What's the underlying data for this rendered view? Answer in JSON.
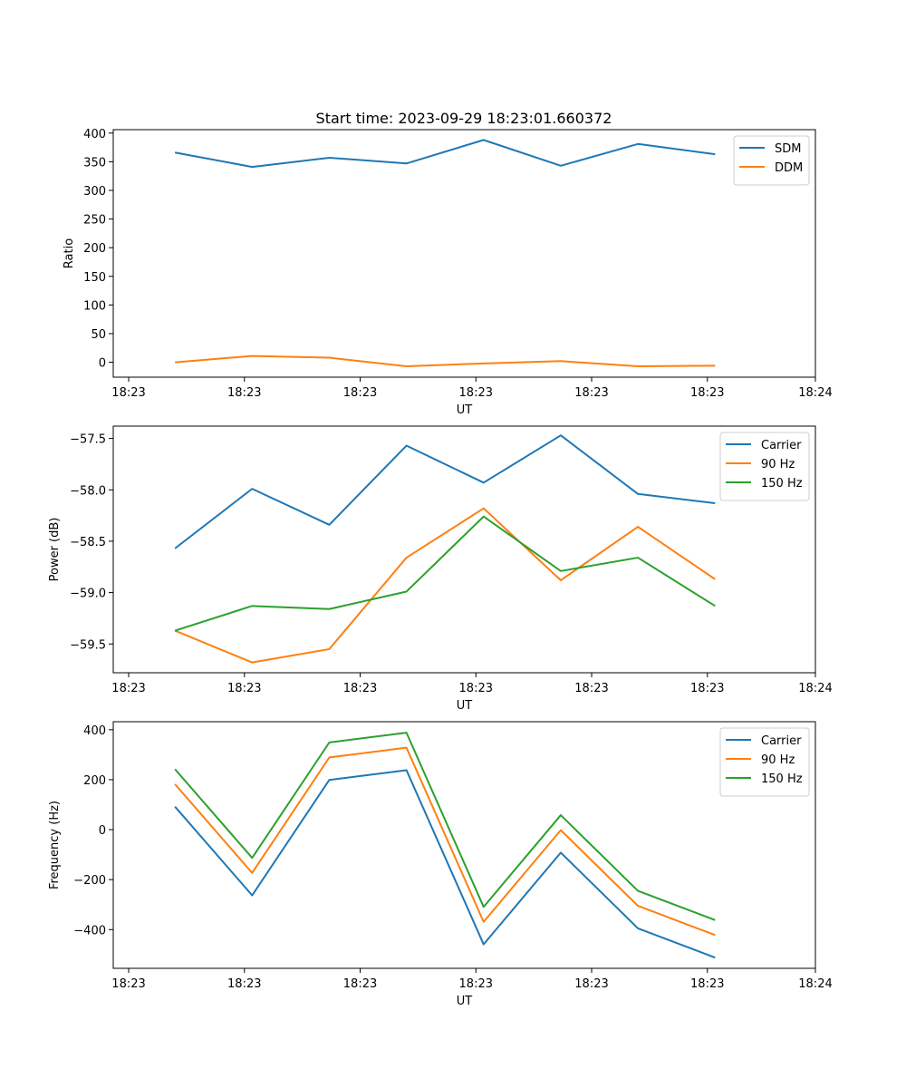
{
  "title": "Start time: 2023-09-29 18:23:01.660372",
  "chart_data": [
    {
      "type": "line",
      "xlabel": "UT",
      "ylabel": "Ratio",
      "x": [
        1,
        2,
        3,
        4,
        5,
        6,
        7,
        8
      ],
      "xlim": [
        0.2,
        9.3
      ],
      "xticks": [
        0.4,
        1.9,
        3.4,
        4.9,
        6.4,
        7.9,
        9.3
      ],
      "xtick_labels": [
        "18:23",
        "18:23",
        "18:23",
        "18:23",
        "18:23",
        "18:23",
        "18:24"
      ],
      "ylim": [
        -26,
        406
      ],
      "yticks": [
        0,
        50,
        100,
        150,
        200,
        250,
        300,
        350,
        400
      ],
      "ytick_labels": [
        "0",
        "50",
        "100",
        "150",
        "200",
        "250",
        "300",
        "350",
        "400"
      ],
      "legend_position": "top-right",
      "series": [
        {
          "name": "SDM",
          "color": "#1f77b4",
          "values": [
            366,
            341,
            357,
            347,
            388,
            343,
            381,
            363
          ]
        },
        {
          "name": "DDM",
          "color": "#ff7f0e",
          "values": [
            0,
            11,
            8,
            -7,
            -2,
            2,
            -7,
            -6
          ]
        }
      ]
    },
    {
      "type": "line",
      "xlabel": "UT",
      "ylabel": "Power (dB)",
      "x": [
        1,
        2,
        3,
        4,
        5,
        6,
        7,
        8
      ],
      "xlim": [
        0.2,
        9.3
      ],
      "xticks": [
        0.4,
        1.9,
        3.4,
        4.9,
        6.4,
        7.9,
        9.3
      ],
      "xtick_labels": [
        "18:23",
        "18:23",
        "18:23",
        "18:23",
        "18:23",
        "18:23",
        "18:24"
      ],
      "ylim": [
        -59.78,
        -57.38
      ],
      "yticks": [
        -59.5,
        -59.0,
        -58.5,
        -58.0,
        -57.5
      ],
      "ytick_labels": [
        "−59.5",
        "−59.0",
        "−58.5",
        "−58.0",
        "−57.5"
      ],
      "legend_position": "top-right",
      "series": [
        {
          "name": "Carrier",
          "color": "#1f77b4",
          "values": [
            -58.57,
            -57.99,
            -58.34,
            -57.57,
            -57.93,
            -57.47,
            -58.04,
            -58.13
          ]
        },
        {
          "name": "90 Hz",
          "color": "#ff7f0e",
          "values": [
            -59.37,
            -59.68,
            -59.55,
            -58.66,
            -58.18,
            -58.88,
            -58.36,
            -58.87
          ]
        },
        {
          "name": "150 Hz",
          "color": "#2ca02c",
          "values": [
            -59.37,
            -59.13,
            -59.16,
            -58.99,
            -58.26,
            -58.79,
            -58.66,
            -59.13
          ]
        }
      ]
    },
    {
      "type": "line",
      "xlabel": "UT",
      "ylabel": "Frequency (Hz)",
      "x": [
        1,
        2,
        3,
        4,
        5,
        6,
        7,
        8
      ],
      "xlim": [
        0.2,
        9.3
      ],
      "xticks": [
        0.4,
        1.9,
        3.4,
        4.9,
        6.4,
        7.9,
        9.3
      ],
      "xtick_labels": [
        "18:23",
        "18:23",
        "18:23",
        "18:23",
        "18:23",
        "18:23",
        "18:24"
      ],
      "ylim": [
        -555,
        432
      ],
      "yticks": [
        -400,
        -200,
        0,
        200,
        400
      ],
      "ytick_labels": [
        "−400",
        "−200",
        "0",
        "200",
        "400"
      ],
      "legend_position": "top-right",
      "series": [
        {
          "name": "Carrier",
          "color": "#1f77b4",
          "values": [
            92,
            -263,
            199,
            238,
            -459,
            -92,
            -395,
            -512
          ]
        },
        {
          "name": "90 Hz",
          "color": "#ff7f0e",
          "values": [
            182,
            -173,
            289,
            328,
            -369,
            -2,
            -305,
            -422
          ]
        },
        {
          "name": "150 Hz",
          "color": "#2ca02c",
          "values": [
            242,
            -113,
            349,
            388,
            -309,
            58,
            -245,
            -362
          ]
        }
      ]
    }
  ]
}
